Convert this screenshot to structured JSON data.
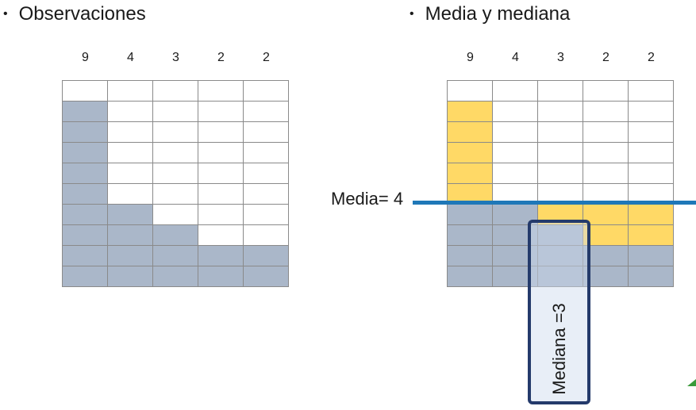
{
  "left_panel": {
    "title": "Observaciones",
    "columns": [
      "9",
      "4",
      "3",
      "2",
      "2"
    ],
    "grid": [
      [
        "white",
        "white",
        "white",
        "white",
        "white"
      ],
      [
        "gray",
        "white",
        "white",
        "white",
        "white"
      ],
      [
        "gray",
        "white",
        "white",
        "white",
        "white"
      ],
      [
        "gray",
        "white",
        "white",
        "white",
        "white"
      ],
      [
        "gray",
        "white",
        "white",
        "white",
        "white"
      ],
      [
        "gray",
        "white",
        "white",
        "white",
        "white"
      ],
      [
        "gray",
        "gray",
        "white",
        "white",
        "white"
      ],
      [
        "gray",
        "gray",
        "gray",
        "white",
        "white"
      ],
      [
        "gray",
        "gray",
        "gray",
        "gray",
        "gray"
      ],
      [
        "gray",
        "gray",
        "gray",
        "gray",
        "gray"
      ]
    ]
  },
  "right_panel": {
    "title": "Media y mediana",
    "columns": [
      "9",
      "4",
      "3",
      "2",
      "2"
    ],
    "grid": [
      [
        "white",
        "white",
        "white",
        "white",
        "white"
      ],
      [
        "yellow",
        "white",
        "white",
        "white",
        "white"
      ],
      [
        "yellow",
        "white",
        "white",
        "white",
        "white"
      ],
      [
        "yellow",
        "white",
        "white",
        "white",
        "white"
      ],
      [
        "yellow",
        "white",
        "white",
        "white",
        "white"
      ],
      [
        "yellow",
        "white",
        "white",
        "white",
        "white"
      ],
      [
        "gray",
        "gray",
        "yellow",
        "yellow",
        "yellow"
      ],
      [
        "gray",
        "gray",
        "gray",
        "yellow",
        "yellow"
      ],
      [
        "gray",
        "gray",
        "gray",
        "gray",
        "gray"
      ],
      [
        "gray",
        "gray",
        "gray",
        "gray",
        "gray"
      ]
    ],
    "mean_label": "Media= 4",
    "median_label": "Mediana =3"
  },
  "colors": {
    "gray": "#aab7c9",
    "yellow": "#ffd966",
    "mean_line": "#1f78b8",
    "median_box": "#243a6b"
  }
}
